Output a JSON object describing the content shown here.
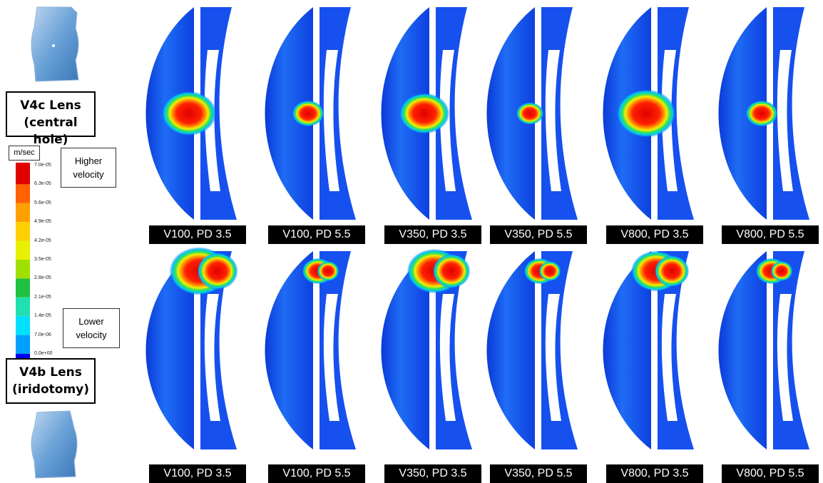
{
  "top_label": {
    "title": "V4c Lens",
    "subtitle": "(central hole)"
  },
  "bottom_label": {
    "title": "V4b Lens",
    "subtitle": "(iridotomy)"
  },
  "legend": {
    "unit": "m/sec",
    "ticks": [
      "7.0e-05",
      "6.3e-05",
      "5.6e-05",
      "4.9e-05",
      "4.2e-05",
      "3.5e-05",
      "2.8e-05",
      "2.1e-05",
      "1.4e-05",
      "7.0e-06",
      "0.0e+00"
    ],
    "high": "Higher velocity",
    "low": "Lower velocity"
  },
  "rows": [
    {
      "panels": [
        "V100, PD 3.5",
        "V100, PD 5.5",
        "V350, PD 3.5",
        "V350, PD 5.5",
        "V800, PD 3.5",
        "V800, PD 5.5"
      ]
    },
    {
      "panels": [
        "V100, PD 3.5",
        "V100, PD 5.5",
        "V350, PD 3.5",
        "V350, PD 5.5",
        "V800, PD 3.5",
        "V800, PD 5.5"
      ]
    }
  ]
}
